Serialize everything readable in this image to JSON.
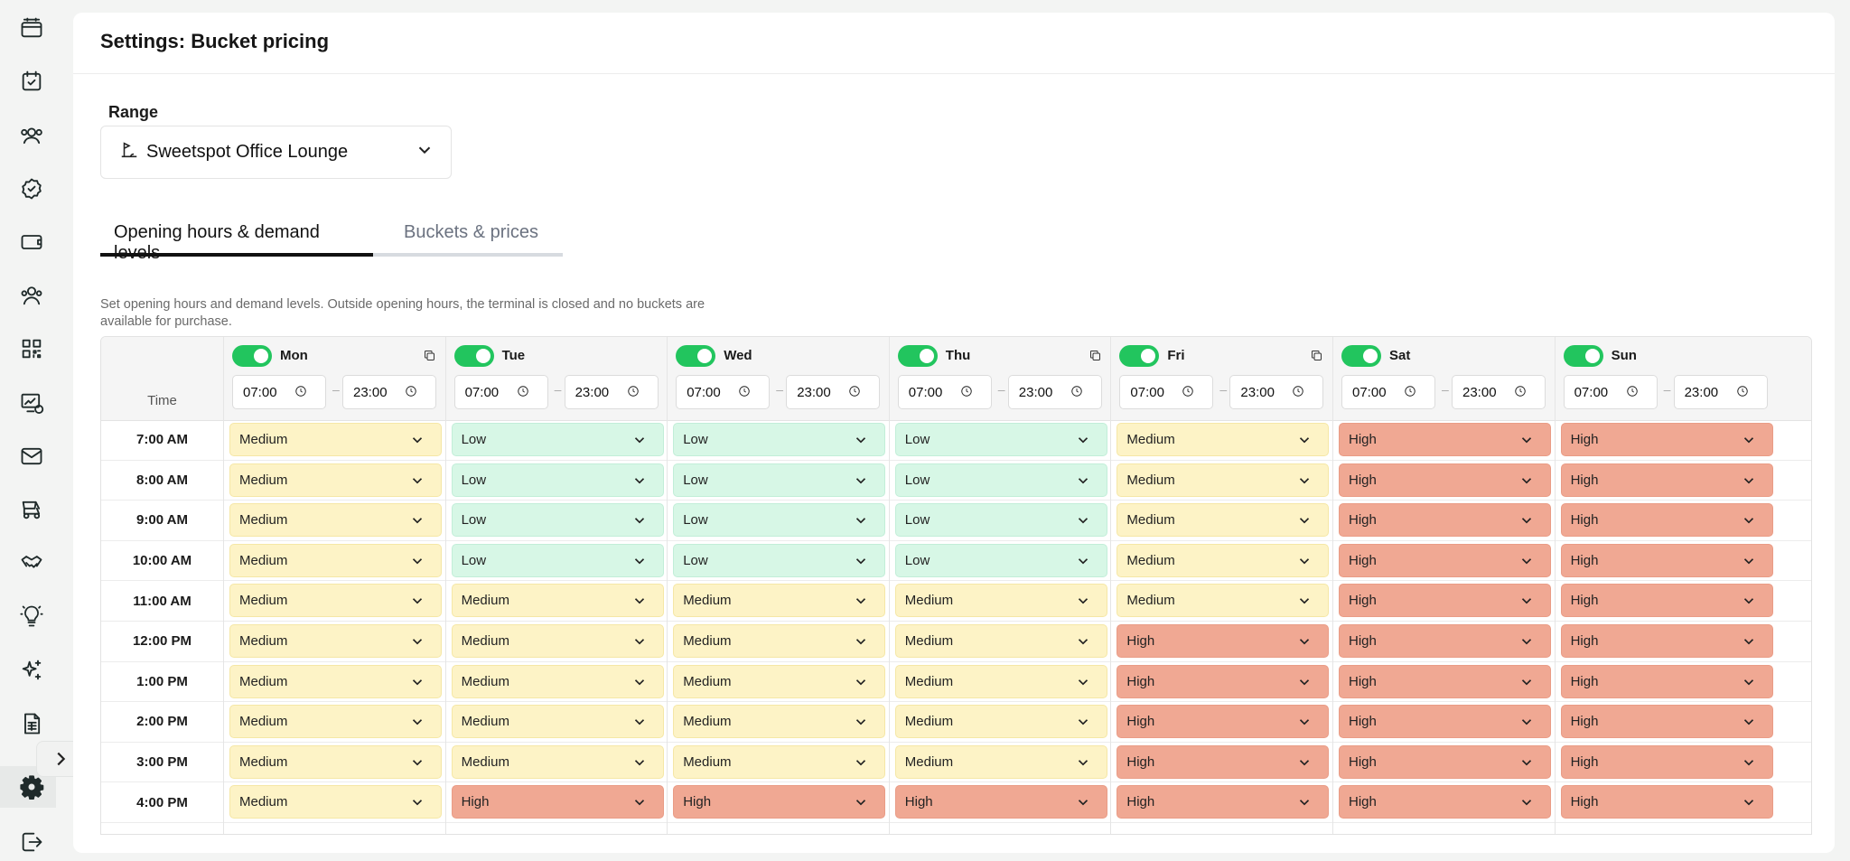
{
  "page": {
    "title": "Settings: Bucket pricing"
  },
  "range": {
    "label": "Range",
    "value": "Sweetspot Office Lounge"
  },
  "tabs": [
    {
      "label": "Opening hours & demand levels",
      "active": true
    },
    {
      "label": "Buckets & prices",
      "active": false
    }
  ],
  "description": "Set opening hours and demand levels. Outside opening hours, the terminal is closed and no buckets are available for purchase.",
  "grid": {
    "time_header": "Time",
    "days": [
      {
        "name": "Mon",
        "enabled": true,
        "open": "07:00",
        "close": "23:00",
        "copyable": true
      },
      {
        "name": "Tue",
        "enabled": true,
        "open": "07:00",
        "close": "23:00",
        "copyable": false
      },
      {
        "name": "Wed",
        "enabled": true,
        "open": "07:00",
        "close": "23:00",
        "copyable": false
      },
      {
        "name": "Thu",
        "enabled": true,
        "open": "07:00",
        "close": "23:00",
        "copyable": true
      },
      {
        "name": "Fri",
        "enabled": true,
        "open": "07:00",
        "close": "23:00",
        "copyable": true
      },
      {
        "name": "Sat",
        "enabled": true,
        "open": "07:00",
        "close": "23:00",
        "copyable": false
      },
      {
        "name": "Sun",
        "enabled": true,
        "open": "07:00",
        "close": "23:00",
        "copyable": false
      }
    ],
    "rows": [
      {
        "time": "7:00 AM",
        "levels": [
          "Medium",
          "Low",
          "Low",
          "Low",
          "Medium",
          "High",
          "High"
        ]
      },
      {
        "time": "8:00 AM",
        "levels": [
          "Medium",
          "Low",
          "Low",
          "Low",
          "Medium",
          "High",
          "High"
        ]
      },
      {
        "time": "9:00 AM",
        "levels": [
          "Medium",
          "Low",
          "Low",
          "Low",
          "Medium",
          "High",
          "High"
        ]
      },
      {
        "time": "10:00 AM",
        "levels": [
          "Medium",
          "Low",
          "Low",
          "Low",
          "Medium",
          "High",
          "High"
        ]
      },
      {
        "time": "11:00 AM",
        "levels": [
          "Medium",
          "Medium",
          "Medium",
          "Medium",
          "Medium",
          "High",
          "High"
        ]
      },
      {
        "time": "12:00 PM",
        "levels": [
          "Medium",
          "Medium",
          "Medium",
          "Medium",
          "High",
          "High",
          "High"
        ]
      },
      {
        "time": "1:00 PM",
        "levels": [
          "Medium",
          "Medium",
          "Medium",
          "Medium",
          "High",
          "High",
          "High"
        ]
      },
      {
        "time": "2:00 PM",
        "levels": [
          "Medium",
          "Medium",
          "Medium",
          "Medium",
          "High",
          "High",
          "High"
        ]
      },
      {
        "time": "3:00 PM",
        "levels": [
          "Medium",
          "Medium",
          "Medium",
          "Medium",
          "High",
          "High",
          "High"
        ]
      },
      {
        "time": "4:00 PM",
        "levels": [
          "Medium",
          "High",
          "High",
          "High",
          "High",
          "High",
          "High"
        ]
      }
    ]
  },
  "colors": {
    "toggle_on": "#22c55e",
    "medium": "#fdf3c6",
    "low": "#d7f7e6",
    "high": "#f0a893"
  },
  "sidebar": {
    "icons": [
      "calendar-stack-icon",
      "calendar-check-icon",
      "users-icon",
      "badge-check-icon",
      "ticket-icon",
      "members-icon",
      "qr-code-icon",
      "monitor-dollar-icon",
      "mail-icon",
      "golf-cart-icon",
      "handshake-icon",
      "lightbulb-icon",
      "sparkles-icon",
      "spreadsheet-icon"
    ],
    "active": "settings-gear-icon"
  }
}
